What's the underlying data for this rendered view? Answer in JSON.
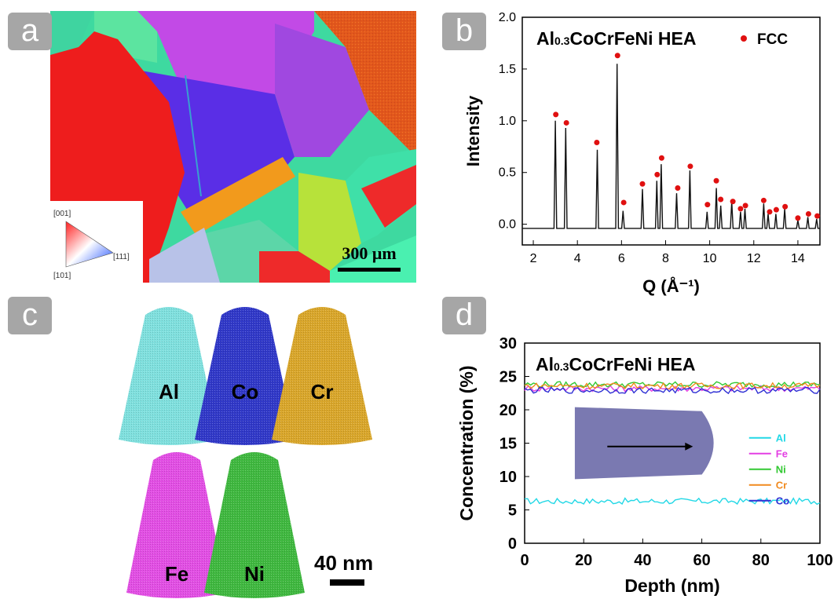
{
  "panels": {
    "a": {
      "letter": "a",
      "scalebar_label": "300 μm",
      "ipf_legend": {
        "top": "[001]",
        "right": "[111]",
        "bottom": "[101]"
      }
    },
    "b": {
      "letter": "b"
    },
    "c": {
      "letter": "c",
      "elements": [
        "Al",
        "Co",
        "Cr",
        "Fe",
        "Ni"
      ],
      "colors": {
        "Al": "#7fe0de",
        "Co": "#3038c8",
        "Cr": "#d9a62a",
        "Fe": "#e24ee4",
        "Ni": "#3fb83f"
      },
      "scalebar_label": "40 nm"
    },
    "d": {
      "letter": "d"
    }
  },
  "chart_data": [
    {
      "type": "line",
      "panel": "b",
      "title": "Al0.3CoCrFeNi HEA",
      "xlabel": "Q (Å⁻¹)",
      "ylabel": "Intensity",
      "xlim": [
        1.5,
        15
      ],
      "ylim": [
        -0.2,
        2.0
      ],
      "xticks": [
        2,
        4,
        6,
        8,
        10,
        12,
        14
      ],
      "yticks": [
        0.0,
        0.5,
        1.0,
        1.5,
        2.0
      ],
      "ytick_labels": [
        "0.0",
        "0.5",
        "1.0",
        "1.5",
        "2.0"
      ],
      "legend": {
        "label": "FCC",
        "marker": "red-dot",
        "placement": "top-right"
      },
      "baseline": -0.04,
      "peaks": [
        {
          "q": 3.0,
          "i": 1.0
        },
        {
          "q": 3.47,
          "i": 0.93
        },
        {
          "q": 4.9,
          "i": 0.72
        },
        {
          "q": 5.8,
          "i": 1.55
        },
        {
          "q": 6.07,
          "i": 0.13
        },
        {
          "q": 6.95,
          "i": 0.34
        },
        {
          "q": 7.6,
          "i": 0.42
        },
        {
          "q": 7.8,
          "i": 0.58
        },
        {
          "q": 8.5,
          "i": 0.3
        },
        {
          "q": 9.1,
          "i": 0.52
        },
        {
          "q": 9.88,
          "i": 0.12
        },
        {
          "q": 10.3,
          "i": 0.35
        },
        {
          "q": 10.5,
          "i": 0.18
        },
        {
          "q": 11.0,
          "i": 0.22
        },
        {
          "q": 11.4,
          "i": 0.12
        },
        {
          "q": 11.6,
          "i": 0.15
        },
        {
          "q": 12.45,
          "i": 0.2
        },
        {
          "q": 12.65,
          "i": 0.1
        },
        {
          "q": 13.0,
          "i": 0.1
        },
        {
          "q": 13.4,
          "i": 0.15
        },
        {
          "q": 14.0,
          "i": 0.04
        },
        {
          "q": 14.45,
          "i": 0.07
        },
        {
          "q": 14.85,
          "i": 0.05
        }
      ],
      "fcc_markers": [
        {
          "q": 3.02,
          "i": 1.06
        },
        {
          "q": 3.5,
          "i": 0.98
        },
        {
          "q": 4.88,
          "i": 0.79
        },
        {
          "q": 5.82,
          "i": 1.63
        },
        {
          "q": 6.1,
          "i": 0.21
        },
        {
          "q": 6.95,
          "i": 0.39
        },
        {
          "q": 7.62,
          "i": 0.48
        },
        {
          "q": 7.82,
          "i": 0.64
        },
        {
          "q": 8.55,
          "i": 0.35
        },
        {
          "q": 9.12,
          "i": 0.56
        },
        {
          "q": 9.9,
          "i": 0.19
        },
        {
          "q": 10.3,
          "i": 0.42
        },
        {
          "q": 10.5,
          "i": 0.24
        },
        {
          "q": 11.05,
          "i": 0.22
        },
        {
          "q": 11.4,
          "i": 0.15
        },
        {
          "q": 11.62,
          "i": 0.18
        },
        {
          "q": 12.45,
          "i": 0.23
        },
        {
          "q": 12.72,
          "i": 0.12
        },
        {
          "q": 13.02,
          "i": 0.14
        },
        {
          "q": 13.42,
          "i": 0.17
        },
        {
          "q": 14.0,
          "i": 0.06
        },
        {
          "q": 14.48,
          "i": 0.1
        },
        {
          "q": 14.88,
          "i": 0.08
        }
      ]
    },
    {
      "type": "line",
      "panel": "d",
      "title": "Al0.3CoCrFeNi HEA",
      "xlabel": "Depth (nm)",
      "ylabel": "Concentration (%)",
      "xlim": [
        0,
        100
      ],
      "ylim": [
        0,
        30
      ],
      "xticks": [
        0,
        20,
        40,
        60,
        80,
        100
      ],
      "yticks": [
        0,
        5,
        10,
        15,
        20,
        25,
        30
      ],
      "legend_placement": "center-right",
      "series": [
        {
          "name": "Al",
          "color": "#22d8e6",
          "mean": 6.3
        },
        {
          "name": "Fe",
          "color": "#e33fe3",
          "mean": 23.2
        },
        {
          "name": "Ni",
          "color": "#32c832",
          "mean": 23.8
        },
        {
          "name": "Cr",
          "color": "#f08a1e",
          "mean": 23.6
        },
        {
          "name": "Co",
          "color": "#2f2fd4",
          "mean": 22.9
        }
      ]
    }
  ]
}
